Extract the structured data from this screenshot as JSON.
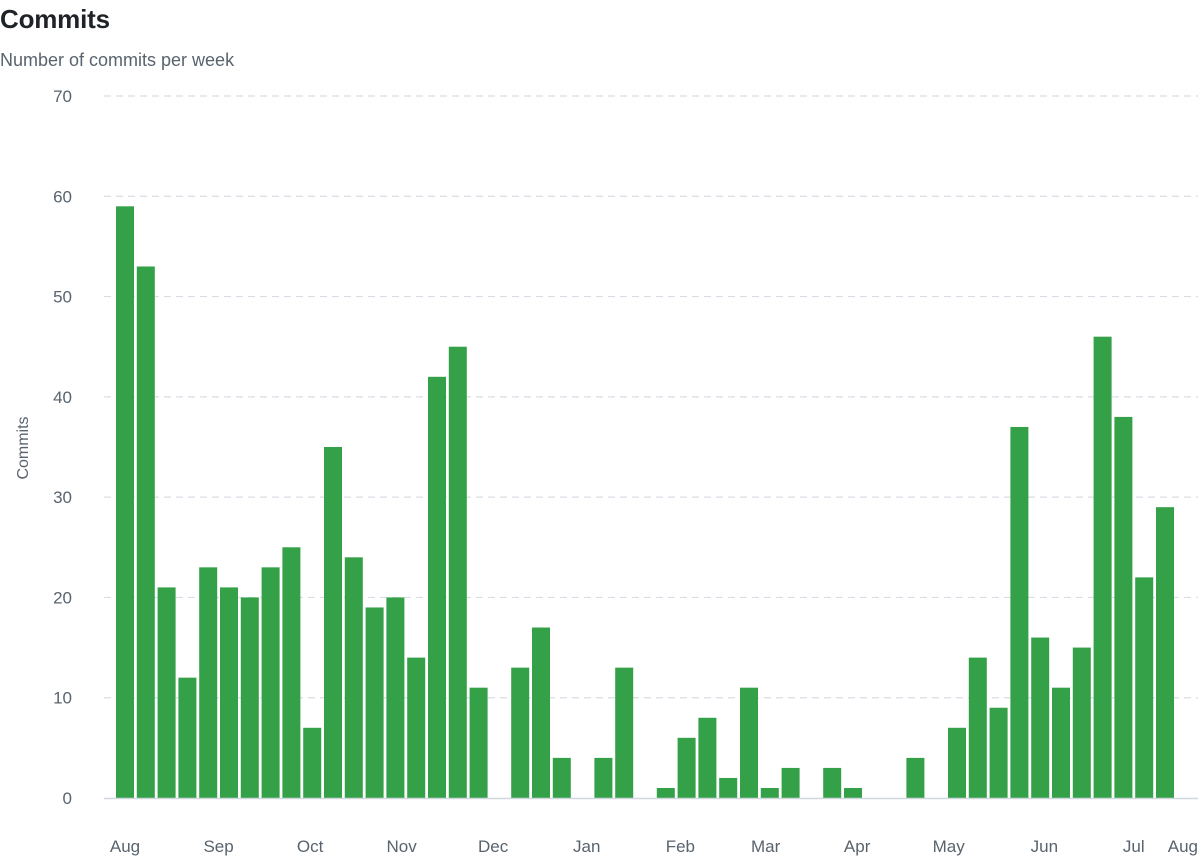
{
  "header": {
    "title": "Commits",
    "subtitle": "Number of commits per week"
  },
  "colors": {
    "bar": "#34a148",
    "grid": "#d8dee4",
    "axis": "#d0d7de",
    "text": "#59636e"
  },
  "chart_data": {
    "type": "bar",
    "title": "Commits",
    "subtitle": "Number of commits per week",
    "ylabel": "Commits",
    "xlabel": "",
    "ylim": [
      0,
      70
    ],
    "yticks": [
      0,
      10,
      20,
      30,
      40,
      50,
      60,
      70
    ],
    "grid": true,
    "month_ticks": [
      {
        "label": "Aug",
        "week": 0
      },
      {
        "label": "Sep",
        "week": 4.5
      },
      {
        "label": "Oct",
        "week": 8.9
      },
      {
        "label": "Nov",
        "week": 13.3
      },
      {
        "label": "Dec",
        "week": 17.7
      },
      {
        "label": "Jan",
        "week": 22.2
      },
      {
        "label": "Feb",
        "week": 26.7
      },
      {
        "label": "Mar",
        "week": 30.8
      },
      {
        "label": "Apr",
        "week": 35.2
      },
      {
        "label": "May",
        "week": 39.6
      },
      {
        "label": "Jun",
        "week": 44.2
      },
      {
        "label": "Jul",
        "week": 48.5
      },
      {
        "label": "Aug",
        "week": 52.9
      }
    ],
    "values": [
      59,
      53,
      21,
      12,
      23,
      21,
      20,
      23,
      25,
      7,
      35,
      24,
      19,
      20,
      14,
      42,
      45,
      11,
      0,
      13,
      17,
      4,
      0,
      4,
      13,
      0,
      1,
      6,
      8,
      2,
      11,
      1,
      3,
      0,
      3,
      1,
      0,
      0,
      4,
      0,
      7,
      14,
      9,
      37,
      16,
      11,
      15,
      46,
      38,
      22,
      29
    ]
  }
}
